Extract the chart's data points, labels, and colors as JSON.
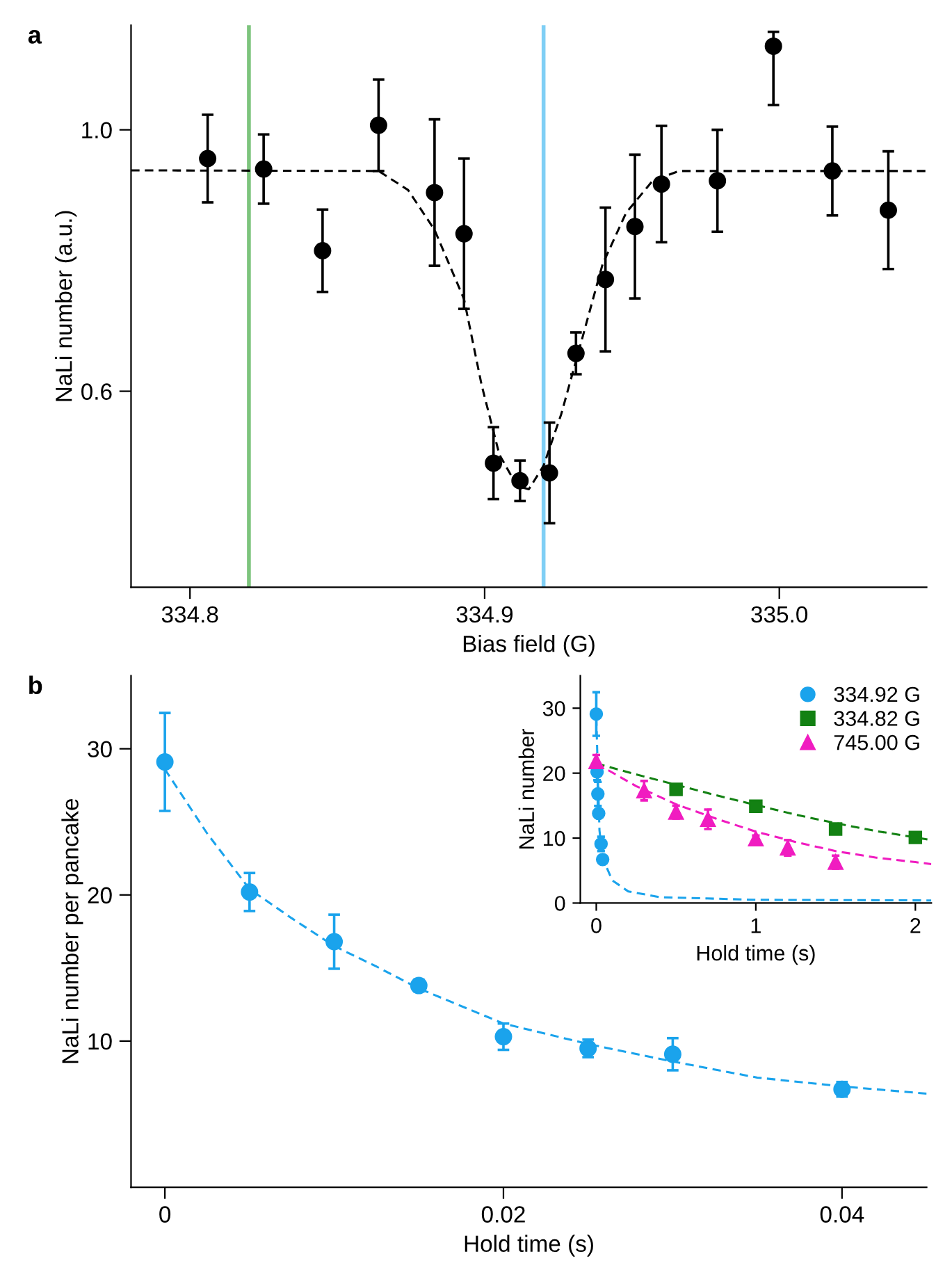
{
  "chart_data": [
    {
      "type": "scatter",
      "annotations": [
        "a"
      ],
      "xlabel": "Bias field (G)",
      "ylabel": "NaLi number (a.u.)",
      "xlim": [
        334.78,
        335.05
      ],
      "ylim": [
        0.3,
        1.16
      ],
      "xticks": [
        {
          "value": 334.8,
          "label": "334.8"
        },
        {
          "value": 334.9,
          "label": "334.9"
        },
        {
          "value": 335.0,
          "label": "335.0"
        }
      ],
      "yticks": [
        {
          "value": 0.6,
          "label": "0.6"
        },
        {
          "value": 1.0,
          "label": "1.0"
        }
      ],
      "grid": false,
      "legend": false,
      "ref_lines": [
        {
          "axis": "x",
          "value": 334.82,
          "color": "#7dc47d"
        },
        {
          "axis": "x",
          "value": 334.92,
          "color": "#7fcff5"
        }
      ],
      "series": [
        {
          "type": "scatter",
          "color": "#000000",
          "marker": "circle",
          "x": [
            334.806,
            334.825,
            334.845,
            334.864,
            334.883,
            334.893,
            334.903,
            334.912,
            334.922,
            334.931,
            334.941,
            334.951,
            334.96,
            334.979,
            334.998,
            335.018,
            335.037
          ],
          "values": [
            0.956,
            0.94,
            0.815,
            1.007,
            0.904,
            0.841,
            0.49,
            0.463,
            0.475,
            0.658,
            0.771,
            0.852,
            0.917,
            0.922,
            1.128,
            0.937,
            0.877
          ],
          "errors": [
            0.067,
            0.053,
            0.063,
            0.07,
            0.112,
            0.115,
            0.055,
            0.031,
            0.077,
            0.032,
            0.11,
            0.11,
            0.089,
            0.078,
            [
              1.038,
              1.15
            ],
            0.068,
            0.09
          ]
        },
        {
          "type": "line",
          "color": "#000000",
          "line_style": "dashed",
          "x": [
            334.78,
            334.864,
            334.874,
            334.883,
            334.893,
            334.899,
            334.905,
            334.911,
            334.915,
            334.92,
            334.926,
            334.933,
            334.94,
            334.948,
            334.957,
            334.966,
            335.05
          ],
          "values": [
            0.938,
            0.937,
            0.908,
            0.847,
            0.741,
            0.609,
            0.503,
            0.455,
            0.45,
            0.486,
            0.565,
            0.679,
            0.794,
            0.873,
            0.922,
            0.937,
            0.937
          ]
        }
      ]
    },
    {
      "type": "scatter",
      "annotations": [
        "b"
      ],
      "xlabel": "Hold time (s)",
      "ylabel": "NaLi number per pancake",
      "xlim": [
        -0.002,
        0.045
      ],
      "ylim": [
        0,
        35
      ],
      "xticks": [
        0,
        0.02,
        0.04
      ],
      "yticks": [
        10,
        20,
        30
      ],
      "grid": false,
      "legend": false,
      "series": [
        {
          "type": "scatter",
          "color": "#1aa3ec",
          "marker": "circle",
          "x": [
            0,
            0.005,
            0.01,
            0.015,
            0.02,
            0.025,
            0.03,
            0.04
          ],
          "values": [
            29.1,
            20.2,
            16.8,
            13.8,
            10.3,
            9.5,
            9.1,
            6.7
          ],
          "errors": [
            3.35,
            1.3,
            1.85,
            0.4,
            0.9,
            0.6,
            1.1,
            0.5
          ]
        },
        {
          "type": "line",
          "color": "#1aa3ec",
          "line_style": "dashed",
          "x": [
            0,
            0.0025,
            0.005,
            0.0075,
            0.01,
            0.0125,
            0.015,
            0.02,
            0.025,
            0.03,
            0.035,
            0.04,
            0.045
          ],
          "values": [
            28.6,
            24.2,
            20.4,
            18.4,
            16.5,
            15.1,
            13.6,
            11.2,
            9.8,
            8.6,
            7.5,
            6.9,
            6.4
          ]
        }
      ]
    },
    {
      "type": "scatter",
      "xlabel": "Hold time (s)",
      "ylabel": "NaLi number",
      "xlim": [
        -0.1,
        2.1
      ],
      "ylim": [
        0,
        35
      ],
      "xticks": [
        0,
        1,
        2
      ],
      "yticks": [
        0,
        10,
        20,
        30
      ],
      "grid": false,
      "legend": "top right",
      "series": [
        {
          "type": "scatter",
          "name": "334.92 G",
          "color": "#1aa3ec",
          "marker": "circle",
          "x": [
            0,
            0.005,
            0.01,
            0.015,
            0.02,
            0.025,
            0.03,
            0.04
          ],
          "values": [
            29.1,
            20.2,
            16.8,
            13.8,
            null,
            null,
            9.1,
            6.7
          ],
          "errors": [
            3.35,
            1.3,
            1.85,
            0.4,
            null,
            null,
            1.1,
            0.5
          ]
        },
        {
          "type": "scatter",
          "name": "334.82 G",
          "color": "#138113",
          "marker": "square",
          "x": [
            0.5,
            1,
            1.5,
            2
          ],
          "values": [
            17.5,
            14.9,
            11.4,
            10.1
          ]
        },
        {
          "type": "scatter",
          "name": "745.00 G",
          "color": "#f01cc0",
          "marker": "triangle",
          "x": [
            0,
            0.3,
            0.5,
            0.7,
            1,
            1.2,
            1.5
          ],
          "values": [
            21.8,
            17.3,
            14.0,
            12.9,
            9.9,
            8.5,
            6.3
          ],
          "errors": [
            1,
            1.5,
            1,
            1.5,
            0.5,
            1.2,
            1
          ]
        },
        {
          "type": "line",
          "color": "#1aa3ec",
          "line_style": "dashed",
          "x": [
            0,
            0.02,
            0.04,
            0.1,
            0.2,
            0.4,
            1,
            2.1
          ],
          "values": [
            28.6,
            11.2,
            6.9,
            3.5,
            1.8,
            0.9,
            0.5,
            0.4
          ]
        },
        {
          "type": "line",
          "color": "#138113",
          "line_style": "dashed",
          "x": [
            0,
            0.25,
            0.5,
            0.75,
            1,
            1.25,
            1.5,
            1.75,
            2,
            2.1
          ],
          "values": [
            21.5,
            19.8,
            18.2,
            16.6,
            15.1,
            13.6,
            12.3,
            11.1,
            10.1,
            9.7
          ]
        },
        {
          "type": "line",
          "color": "#f01cc0",
          "line_style": "dashed",
          "x": [
            0,
            0.25,
            0.5,
            0.75,
            1,
            1.25,
            1.5,
            1.75,
            2,
            2.1
          ],
          "values": [
            21.5,
            18.0,
            15.2,
            13.0,
            11.0,
            9.4,
            8.0,
            7.0,
            6.3,
            6.0
          ]
        }
      ]
    }
  ]
}
